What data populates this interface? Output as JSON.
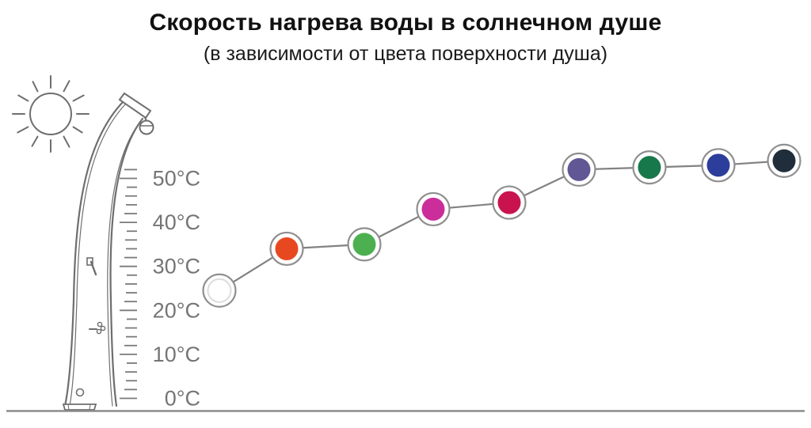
{
  "title": "Скорость нагрева воды в солнечном душе",
  "subtitle": "(в зависимости от цвета поверхности душа)",
  "scale": {
    "ticks": [
      {
        "value": 50,
        "label": "50°C"
      },
      {
        "value": 40,
        "label": "40°C"
      },
      {
        "value": 30,
        "label": "30°C"
      },
      {
        "value": 20,
        "label": "20°C"
      },
      {
        "value": 10,
        "label": "10°C"
      },
      {
        "value": 0,
        "label": "0°C"
      }
    ]
  },
  "chart_data": {
    "type": "line",
    "title": "Скорость нагрева воды в солнечном душе",
    "subtitle": "(в зависимости от цвета поверхности душа)",
    "categories": [
      "белый",
      "оранжевый",
      "зелёный",
      "розовый",
      "малиновый",
      "фиолетовый",
      "тёмно-зелёный",
      "синий",
      "тёмно-синий"
    ],
    "values": [
      24.5,
      34,
      35,
      43,
      44.5,
      52,
      52.5,
      53,
      54
    ],
    "unit": "°C",
    "xlabel": "",
    "ylabel": "",
    "ylim": [
      0,
      55
    ],
    "yticks": [
      0,
      10,
      20,
      30,
      40,
      50
    ],
    "ytick_labels": [
      "0°C",
      "10°C",
      "20°C",
      "30°C",
      "40°C",
      "50°C"
    ],
    "grid": false,
    "legend": false,
    "line_color": "#828282",
    "point_ring_color": "#8f8f8f",
    "white_dot_inner_ring": "#dcdcdc",
    "point_colors": [
      "#ffffff",
      "#e8481f",
      "#4cb050",
      "#cb2e9b",
      "#c9134f",
      "#615795",
      "#17784b",
      "#2c3d9b",
      "#202e3c"
    ]
  },
  "illustration": {
    "icons": [
      "sun-icon",
      "solar-shower-icon",
      "thermometer-scale",
      "ground-line"
    ]
  },
  "colors": {
    "title_text": "#111111",
    "scale_text": "#757575",
    "sketch_stroke": "#6e6e6e"
  }
}
